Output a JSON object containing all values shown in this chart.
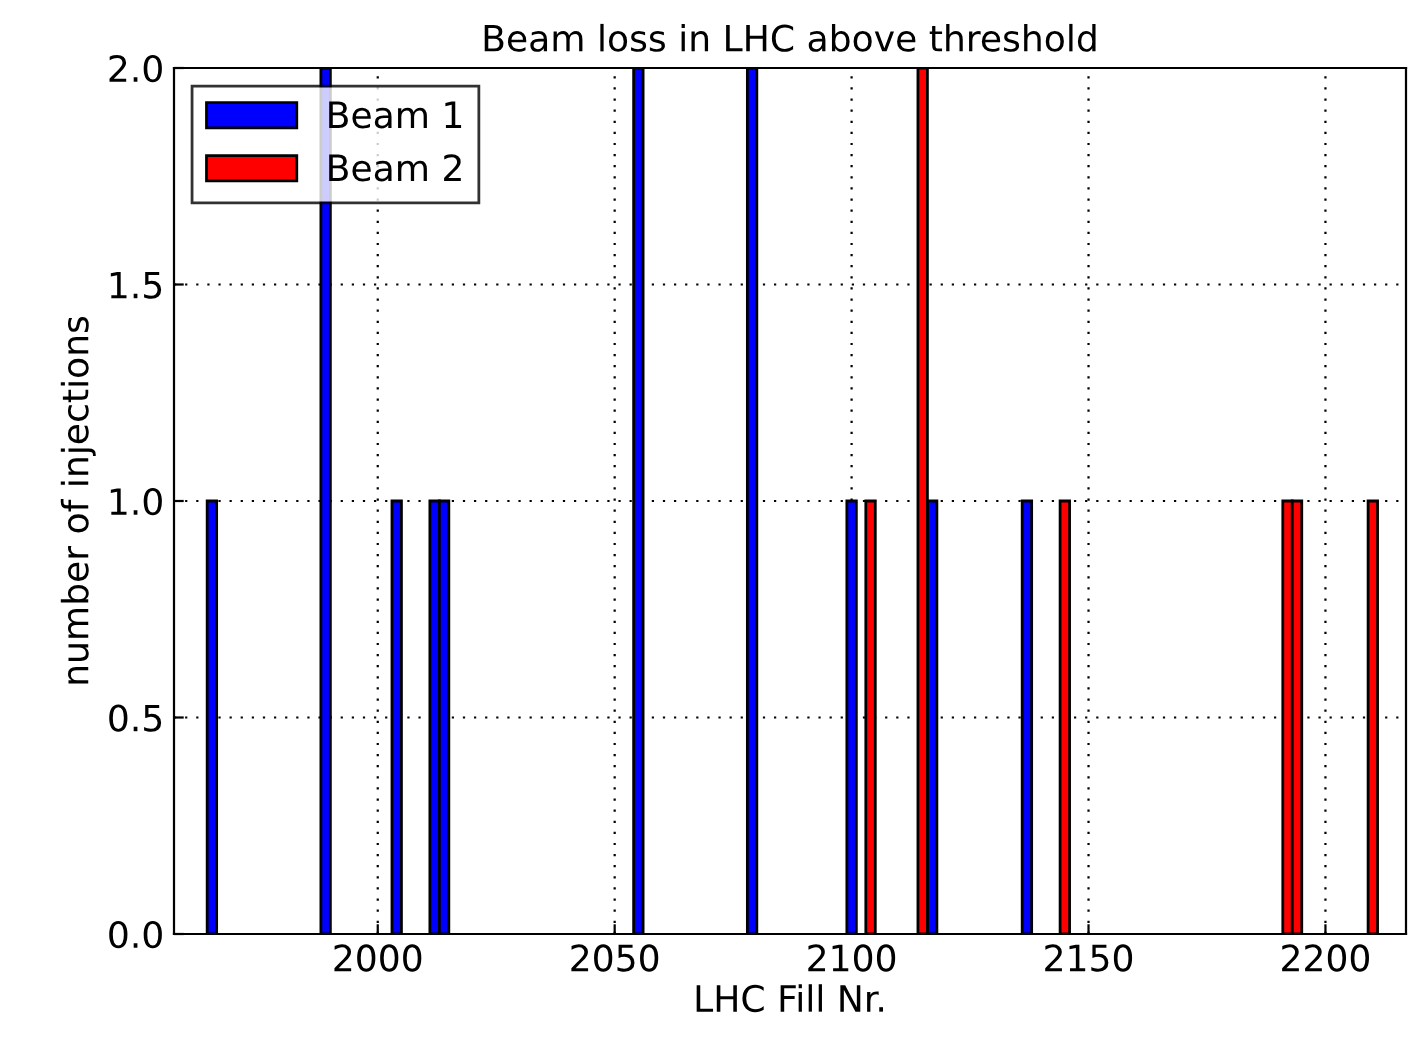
{
  "chart_data": {
    "type": "bar",
    "title": "Beam loss in LHC above threshold",
    "xlabel": "LHC Fill Nr.",
    "ylabel": "number of injections",
    "series": [
      {
        "name": "Beam 1",
        "color": "#0000ff",
        "x": [
          1965,
          1989,
          2004,
          2012,
          2014,
          2055,
          2079,
          2100,
          2117,
          2137
        ],
        "values": [
          1,
          2,
          1,
          1,
          1,
          2,
          2,
          1,
          1,
          1
        ]
      },
      {
        "name": "Beam 2",
        "color": "#ff0000",
        "x": [
          2104,
          2115,
          2145,
          2192,
          2194,
          2210
        ],
        "values": [
          1,
          2,
          1,
          1,
          1,
          1
        ]
      }
    ],
    "xlim": [
      1957,
      2217
    ],
    "xticks": [
      2000,
      2050,
      2100,
      2150,
      2200
    ],
    "ylim": [
      0,
      2
    ],
    "yticks": [
      {
        "value": 0,
        "label": "0.0"
      },
      {
        "value": 0.5,
        "label": "0.5"
      },
      {
        "value": 1,
        "label": "1.0"
      },
      {
        "value": 1.5,
        "label": "1.5"
      },
      {
        "value": 2,
        "label": "2.0"
      }
    ],
    "grid": true,
    "legend": "top left"
  }
}
